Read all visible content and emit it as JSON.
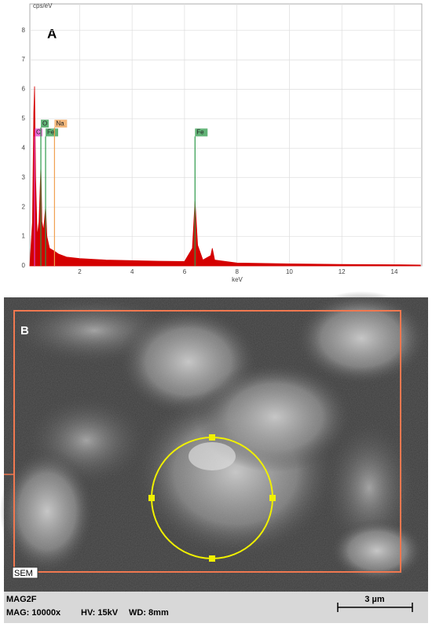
{
  "chart_data": {
    "type": "area",
    "panel_label": "A",
    "y_label": "cps/eV",
    "x_label": "keV",
    "x": [
      0.1,
      0.2,
      0.25,
      0.28,
      0.32,
      0.38,
      0.45,
      0.52,
      0.56,
      0.62,
      0.7,
      0.75,
      0.85,
      1.04,
      1.2,
      1.5,
      2,
      3,
      4,
      5,
      6,
      6.3,
      6.4,
      6.5,
      6.7,
      7.0,
      7.06,
      7.15,
      8,
      10,
      12,
      14,
      15
    ],
    "values": [
      0,
      1.5,
      5.2,
      6.1,
      3.0,
      1.0,
      1.5,
      3.4,
      1.5,
      1.2,
      2.0,
      1.0,
      0.6,
      0.5,
      0.4,
      0.3,
      0.25,
      0.2,
      0.18,
      0.16,
      0.15,
      0.6,
      2.2,
      0.7,
      0.2,
      0.35,
      0.6,
      0.2,
      0.1,
      0.07,
      0.05,
      0.04,
      0.03
    ],
    "color": "#d40000",
    "xlim": [
      0.1,
      15.05
    ],
    "xticks": [
      2,
      4,
      6,
      8,
      10,
      12,
      14
    ],
    "ylim": [
      0,
      8.9
    ],
    "yticks": [
      0,
      1,
      2,
      3,
      4,
      5,
      6,
      7,
      8
    ],
    "grid": true,
    "peak_markers": [
      {
        "label": "C",
        "x": 0.28,
        "height": 4.4,
        "color": "#e040c8"
      },
      {
        "label": "O",
        "x": 0.52,
        "height": 4.7,
        "color": "#2e9a4a"
      },
      {
        "label": "Fe",
        "x": 0.7,
        "height": 4.4,
        "color": "#2e9a4a"
      },
      {
        "label": "Na",
        "x": 1.04,
        "height": 4.7,
        "color": "#f0a050"
      },
      {
        "label": "Fe",
        "x": 6.4,
        "height": 4.4,
        "color": "#2e9a4a"
      }
    ]
  },
  "panel_b": {
    "label": "B",
    "badge": "SEM",
    "info_title": "MAG2F",
    "info": [
      "MAG: 10000x",
      "HV: 15kV",
      "WD: 8mm"
    ],
    "scale_bar": "3 µm"
  }
}
